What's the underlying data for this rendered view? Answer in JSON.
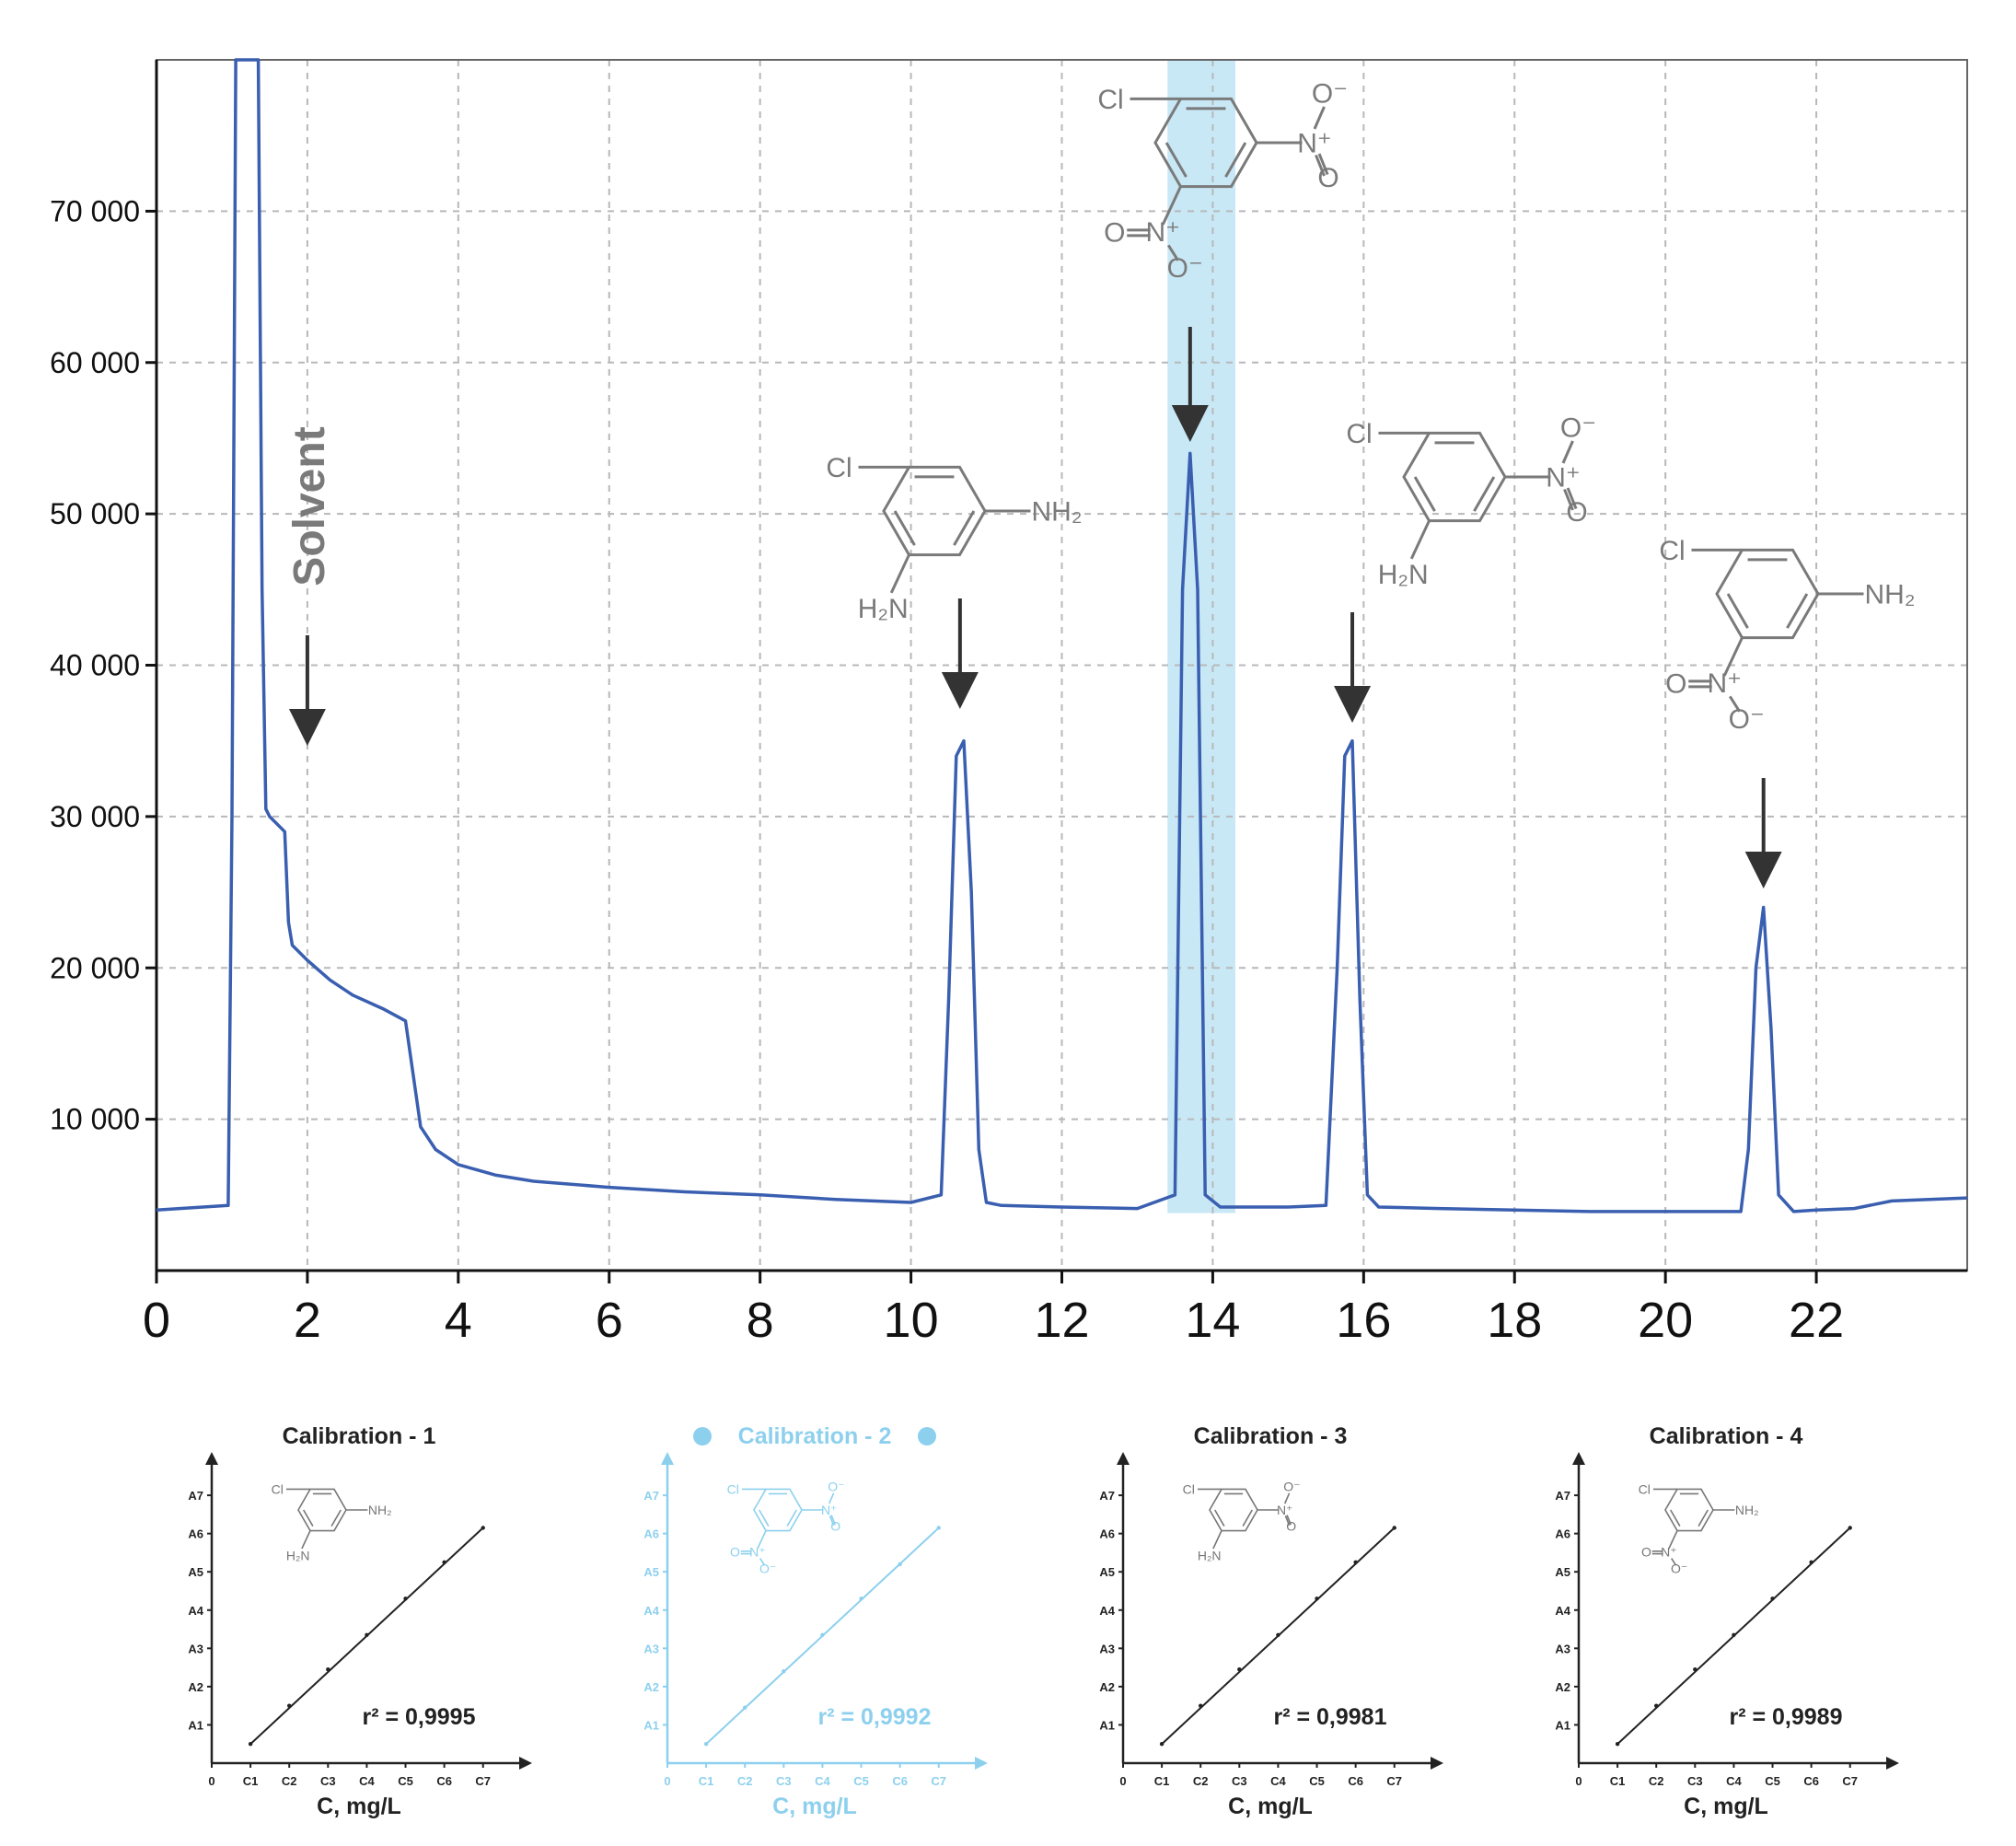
{
  "chart_data": [
    {
      "type": "line",
      "title": "",
      "xlabel": "",
      "ylabel": "",
      "xlim": [
        0,
        24
      ],
      "ylim": [
        0,
        80000
      ],
      "x_ticks": [
        "0",
        "2",
        "4",
        "6",
        "8",
        "10",
        "12",
        "14",
        "16",
        "18",
        "20",
        "22"
      ],
      "y_ticks": [
        "10 000",
        "20 000",
        "30 000",
        "40 000",
        "50 000",
        "60 000",
        "70 000"
      ],
      "grid": true,
      "line_color": "#3a5fb0",
      "highlight_band": {
        "x_start": 13.4,
        "x_end": 14.3,
        "color": "#c8e8f6"
      },
      "series": [
        {
          "x": [
            0,
            0.95,
            1.0,
            1.05,
            1.1,
            1.35,
            1.4,
            1.45,
            1.5,
            1.7,
            1.75,
            1.8,
            2.0,
            2.3,
            2.6,
            3.0,
            3.3,
            3.4,
            3.5,
            3.7,
            4.0,
            4.5,
            5.0,
            6.0,
            7.0,
            8.0,
            9.0,
            10.0,
            10.4,
            10.5,
            10.6,
            10.7,
            10.8,
            10.9,
            11.0,
            11.2,
            12.0,
            13.0,
            13.5,
            13.6,
            13.7,
            13.8,
            13.9,
            14.1,
            15.0,
            15.5,
            15.65,
            15.75,
            15.85,
            15.95,
            16.05,
            16.2,
            17.0,
            18.0,
            19.0,
            20.0,
            21.0,
            21.1,
            21.2,
            21.3,
            21.4,
            21.5,
            21.7,
            22.0,
            22.5,
            23.0,
            24.0
          ],
          "y": [
            4000,
            4300,
            30000,
            80000,
            80000,
            80000,
            45000,
            30500,
            30000,
            29000,
            23000,
            21500,
            20500,
            19200,
            18200,
            17300,
            16500,
            13000,
            9500,
            8000,
            7000,
            6300,
            5900,
            5500,
            5200,
            5000,
            4700,
            4500,
            5000,
            18000,
            34000,
            35000,
            25000,
            8000,
            4500,
            4300,
            4200,
            4100,
            5000,
            45000,
            54000,
            45000,
            5000,
            4200,
            4200,
            4300,
            20000,
            34000,
            35000,
            18000,
            5000,
            4200,
            4100,
            4000,
            3900,
            3900,
            3900,
            8000,
            20000,
            24000,
            16000,
            5000,
            3900,
            4000,
            4100,
            4600,
            4800
          ]
        }
      ],
      "annotations": [
        {
          "text": "Solvent",
          "x": 2.0,
          "color": "#7a7a7a"
        }
      ],
      "peak_labels": [
        {
          "x": 10.65,
          "structure": "chloro-phenylenediamine",
          "labels": [
            "Cl",
            "NH₂",
            "H₂N"
          ]
        },
        {
          "x": 13.7,
          "structure": "chloro-dinitrobenzene",
          "labels": [
            "Cl",
            "N⁺",
            "O⁻",
            "O",
            "O",
            "N⁺",
            "O⁻"
          ]
        },
        {
          "x": 15.85,
          "structure": "chloro-nitroaniline",
          "labels": [
            "Cl",
            "N⁺",
            "O⁻",
            "O",
            "H₂N"
          ]
        },
        {
          "x": 21.3,
          "structure": "chloro-nitroaniline-2",
          "labels": [
            "Cl",
            "NH₂",
            "O",
            "N⁺",
            "O⁻"
          ]
        }
      ]
    },
    {
      "type": "line",
      "title": "Calibration - 1",
      "xlabel": "C, mg/L",
      "x_ticks": [
        "0",
        "C1",
        "C2",
        "C3",
        "C4",
        "C5",
        "C6",
        "C7"
      ],
      "y_ticks": [
        "A1",
        "A2",
        "A3",
        "A4",
        "A5",
        "A6",
        "A7"
      ],
      "r2": "r² = 0,9995",
      "color": "#222222",
      "series": [
        {
          "x": [
            1,
            2,
            3,
            4,
            5,
            6,
            7
          ],
          "y": [
            0.5,
            1.5,
            2.45,
            3.35,
            4.3,
            5.25,
            6.15
          ]
        }
      ]
    },
    {
      "type": "line",
      "title": "Calibration - 2",
      "xlabel": "C, mg/L",
      "x_ticks": [
        "0",
        "C1",
        "C2",
        "C3",
        "C4",
        "C5",
        "C6",
        "C7"
      ],
      "y_ticks": [
        "A1",
        "A2",
        "A3",
        "A4",
        "A5",
        "A6",
        "A7"
      ],
      "r2": "r² = 0,9992",
      "color": "#8dd0ee",
      "series": [
        {
          "x": [
            1,
            2,
            3,
            4,
            5,
            6,
            7
          ],
          "y": [
            0.5,
            1.45,
            2.4,
            3.35,
            4.3,
            5.2,
            6.15
          ]
        }
      ]
    },
    {
      "type": "line",
      "title": "Calibration - 3",
      "xlabel": "C, mg/L",
      "x_ticks": [
        "0",
        "C1",
        "C2",
        "C3",
        "C4",
        "C5",
        "C6",
        "C7"
      ],
      "y_ticks": [
        "A1",
        "A2",
        "A3",
        "A4",
        "A5",
        "A6",
        "A7"
      ],
      "r2": "r² = 0,9981",
      "color": "#222222",
      "series": [
        {
          "x": [
            1,
            2,
            3,
            4,
            5,
            6,
            7
          ],
          "y": [
            0.5,
            1.5,
            2.45,
            3.35,
            4.3,
            5.25,
            6.15
          ]
        }
      ]
    },
    {
      "type": "line",
      "title": "Calibration - 4",
      "xlabel": "C, mg/L",
      "x_ticks": [
        "0",
        "C1",
        "C2",
        "C3",
        "C4",
        "C5",
        "C6",
        "C7"
      ],
      "y_ticks": [
        "A1",
        "A2",
        "A3",
        "A4",
        "A5",
        "A6",
        "A7"
      ],
      "r2": "r² = 0,9989",
      "color": "#222222",
      "series": [
        {
          "x": [
            1,
            2,
            3,
            4,
            5,
            6,
            7
          ],
          "y": [
            0.5,
            1.5,
            2.45,
            3.35,
            4.3,
            5.25,
            6.15
          ]
        }
      ]
    }
  ]
}
